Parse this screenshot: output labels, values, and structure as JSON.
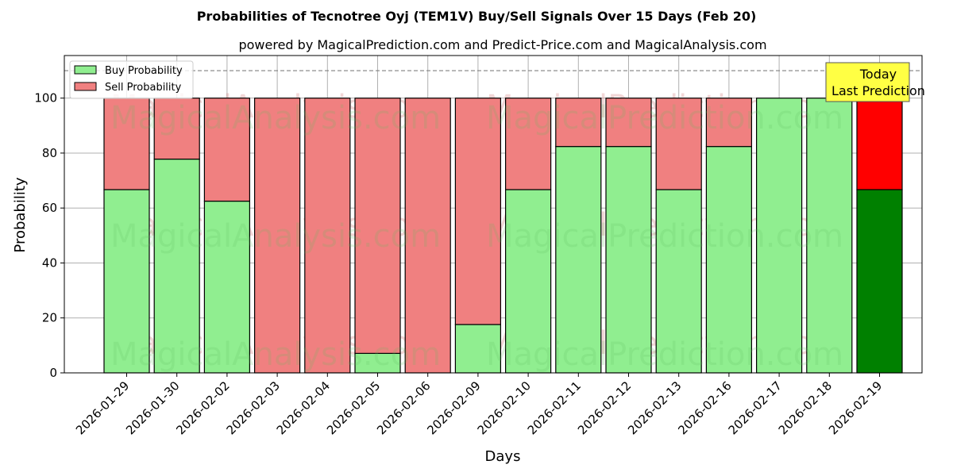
{
  "chart_data": {
    "type": "bar",
    "stacked": true,
    "title": "Probabilities of Tecnotree Oyj (TEM1V) Buy/Sell Signals Over 15 Days (Feb 20)",
    "subtitle": "powered by MagicalPrediction.com and Predict-Price.com and MagicalAnalysis.com",
    "xlabel": "Days",
    "ylabel": "Probability",
    "ylim": [
      0,
      115.5
    ],
    "yticks": [
      0,
      20,
      40,
      60,
      80,
      100
    ],
    "grid": true,
    "legend_position": "upper left",
    "categories": [
      "2026-01-29",
      "2026-01-30",
      "2026-02-02",
      "2026-02-03",
      "2026-02-04",
      "2026-02-05",
      "2026-02-06",
      "2026-02-09",
      "2026-02-10",
      "2026-02-11",
      "2026-02-12",
      "2026-02-13",
      "2026-02-16",
      "2026-02-17",
      "2026-02-18",
      "2026-02-19"
    ],
    "series": [
      {
        "name": "Buy Probability",
        "color": "#90ee90",
        "values": [
          66.7,
          77.8,
          62.5,
          0,
          0,
          7.1,
          0,
          17.6,
          66.7,
          82.4,
          82.4,
          66.7,
          82.4,
          100,
          100,
          66.7
        ]
      },
      {
        "name": "Sell Probability",
        "color": "#f08080",
        "values": [
          33.3,
          22.2,
          37.5,
          100,
          100,
          92.9,
          100,
          82.4,
          33.3,
          17.6,
          17.6,
          33.3,
          17.6,
          0,
          0,
          33.3
        ]
      }
    ],
    "highlight": {
      "index": 15,
      "buy_color": "#008000",
      "sell_color": "#ff0000"
    },
    "reference_line": {
      "y": 110,
      "style": "dashed",
      "color": "#808080"
    },
    "annotations": [
      {
        "text": "Today\nLast Prediction",
        "category": "2026-02-19",
        "background": "#ffff44"
      }
    ],
    "watermarks": [
      "MagicalAnalysis.com",
      "MagicalPrediction.com"
    ]
  }
}
